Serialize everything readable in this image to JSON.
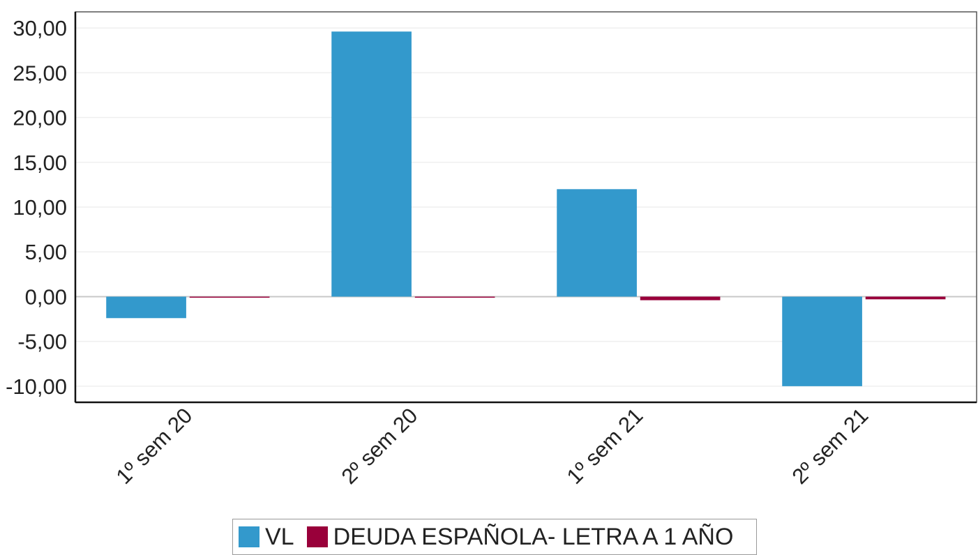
{
  "chart_data": {
    "type": "bar",
    "categories": [
      "1º sem 20",
      "2º sem 20",
      "1º sem 21",
      "2º sem 21"
    ],
    "series": [
      {
        "name": "VL",
        "color": "#3399cc",
        "values": [
          -2.4,
          29.6,
          12.0,
          -10.0
        ]
      },
      {
        "name": "DEUDA ESPAÑOLA- LETRA A 1 AÑO",
        "color": "#99003a",
        "values": [
          -0.1,
          -0.05,
          -0.4,
          -0.3
        ]
      }
    ],
    "ylim": [
      -11.8,
      31.8
    ],
    "yticks": [
      30,
      25,
      20,
      15,
      10,
      5,
      0,
      -5,
      -10
    ],
    "ytick_labels": [
      "30,00",
      "25,00",
      "20,00",
      "15,00",
      "10,00",
      "5,00",
      "0,00",
      "-5,00",
      "-10,00"
    ],
    "grid": true,
    "legend_position": "bottom"
  }
}
